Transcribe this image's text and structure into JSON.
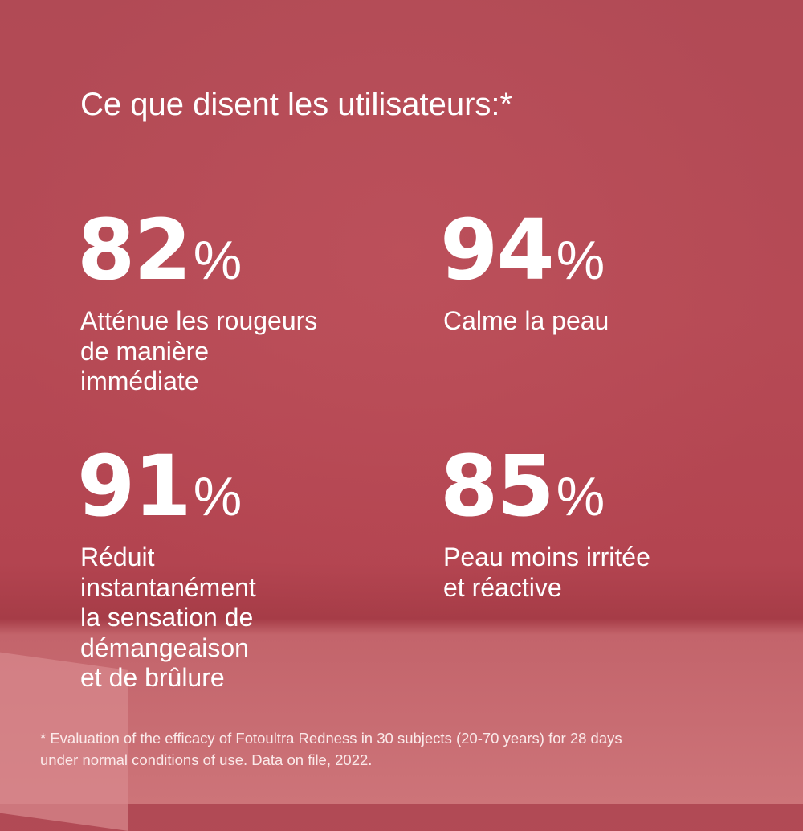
{
  "title": "Ce que disent les utilisateurs:*",
  "stats": [
    {
      "value": 82,
      "unit": "%",
      "lines": [
        "Atténue les rougeurs",
        "de manière",
        "immédiate"
      ]
    },
    {
      "value": 94,
      "unit": "%",
      "lines": [
        "Calme la peau"
      ]
    },
    {
      "value": 91,
      "unit": "%",
      "lines": [
        "Réduit",
        "instantanément",
        "la sensation de",
        "démangeaison",
        "et de brûlure"
      ]
    },
    {
      "value": 85,
      "unit": "%",
      "lines": [
        "Peau moins irritée",
        "et réactive"
      ]
    }
  ],
  "footnote": [
    "* Evaluation of the efficacy of Fotoultra Redness in 30 subjects (20-70 years) for 28 days",
    "under normal conditions of use. Data on file, 2022."
  ]
}
